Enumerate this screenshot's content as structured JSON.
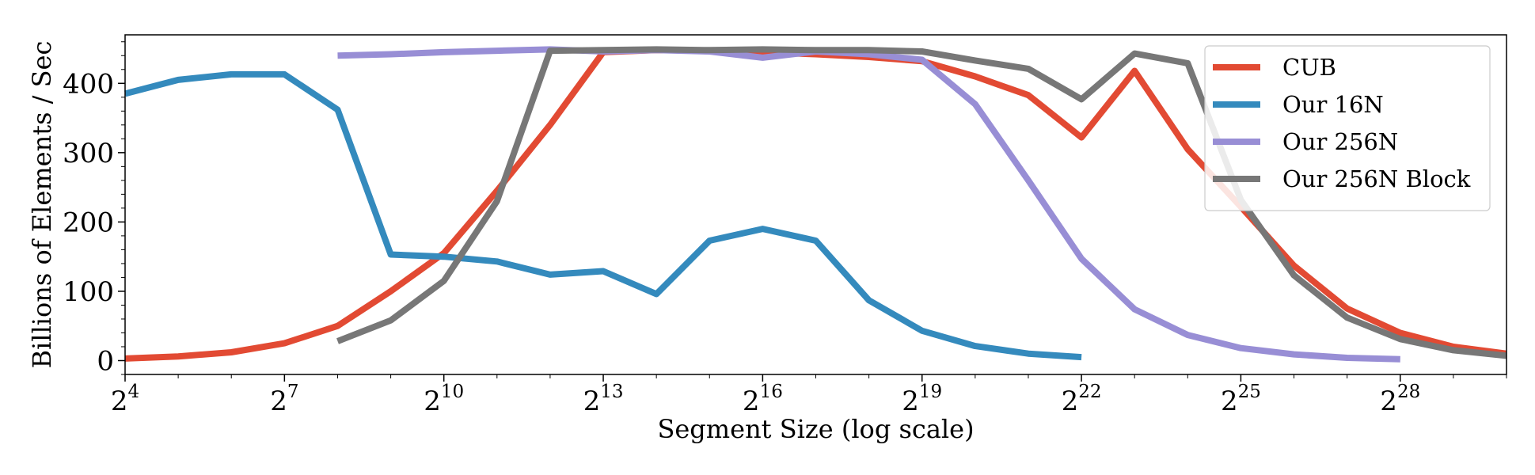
{
  "chart_data": {
    "type": "line",
    "title": "",
    "xlabel": "Segment Size (log scale)",
    "ylabel": "Billions of Elements / Sec",
    "x_scale": "log2",
    "x_range_exponent": [
      4,
      30
    ],
    "ylim": [
      -20,
      470
    ],
    "x_ticks": [
      {
        "base": "2",
        "exp": "4",
        "exponent": 4
      },
      {
        "base": "2",
        "exp": "7",
        "exponent": 7
      },
      {
        "base": "2",
        "exp": "10",
        "exponent": 10
      },
      {
        "base": "2",
        "exp": "13",
        "exponent": 13
      },
      {
        "base": "2",
        "exp": "16",
        "exponent": 16
      },
      {
        "base": "2",
        "exp": "19",
        "exponent": 19
      },
      {
        "base": "2",
        "exp": "22",
        "exponent": 22
      },
      {
        "base": "2",
        "exp": "25",
        "exponent": 25
      },
      {
        "base": "2",
        "exp": "28",
        "exponent": 28
      }
    ],
    "y_ticks": [
      0,
      100,
      200,
      300,
      400
    ],
    "grid": false,
    "legend_position": "top-right",
    "series": [
      {
        "name": "CUB",
        "color": "#e24a33",
        "x_exponent": [
          4,
          5,
          6,
          7,
          8,
          9,
          10,
          11,
          12,
          13,
          14,
          15,
          16,
          17,
          18,
          19,
          20,
          21,
          22,
          23,
          24,
          25,
          26,
          27,
          28,
          29,
          30
        ],
        "values": [
          3,
          6,
          12,
          25,
          50,
          100,
          155,
          245,
          340,
          445,
          448,
          447,
          445,
          442,
          438,
          432,
          410,
          383,
          322,
          418,
          305,
          222,
          137,
          75,
          40,
          20,
          10
        ]
      },
      {
        "name": "Our 16N",
        "color": "#348abd",
        "x_exponent": [
          4,
          5,
          6,
          7,
          8,
          9,
          10,
          11,
          12,
          13,
          14,
          15,
          16,
          17,
          18,
          19,
          20,
          21,
          22
        ],
        "values": [
          385,
          405,
          413,
          413,
          362,
          153,
          150,
          143,
          124,
          129,
          96,
          173,
          190,
          173,
          87,
          43,
          21,
          10,
          5
        ]
      },
      {
        "name": "Our 256N",
        "color": "#988ed5",
        "x_exponent": [
          8,
          9,
          10,
          11,
          12,
          13,
          14,
          15,
          16,
          17,
          18,
          19,
          20,
          21,
          22,
          23,
          24,
          25,
          26,
          27,
          28
        ],
        "values": [
          440,
          442,
          445,
          447,
          449,
          446,
          448,
          446,
          437,
          446,
          442,
          434,
          370,
          260,
          147,
          74,
          37,
          18,
          9,
          4,
          2
        ]
      },
      {
        "name": "Our 256N Block",
        "color": "#777777",
        "x_exponent": [
          8,
          9,
          10,
          11,
          12,
          13,
          14,
          15,
          16,
          17,
          18,
          19,
          20,
          21,
          22,
          23,
          24,
          25,
          26,
          27,
          28,
          29,
          30
        ],
        "values": [
          28,
          58,
          115,
          230,
          447,
          448,
          449,
          448,
          449,
          448,
          448,
          446,
          433,
          421,
          377,
          443,
          429,
          232,
          123,
          62,
          31,
          15,
          7
        ]
      }
    ]
  }
}
